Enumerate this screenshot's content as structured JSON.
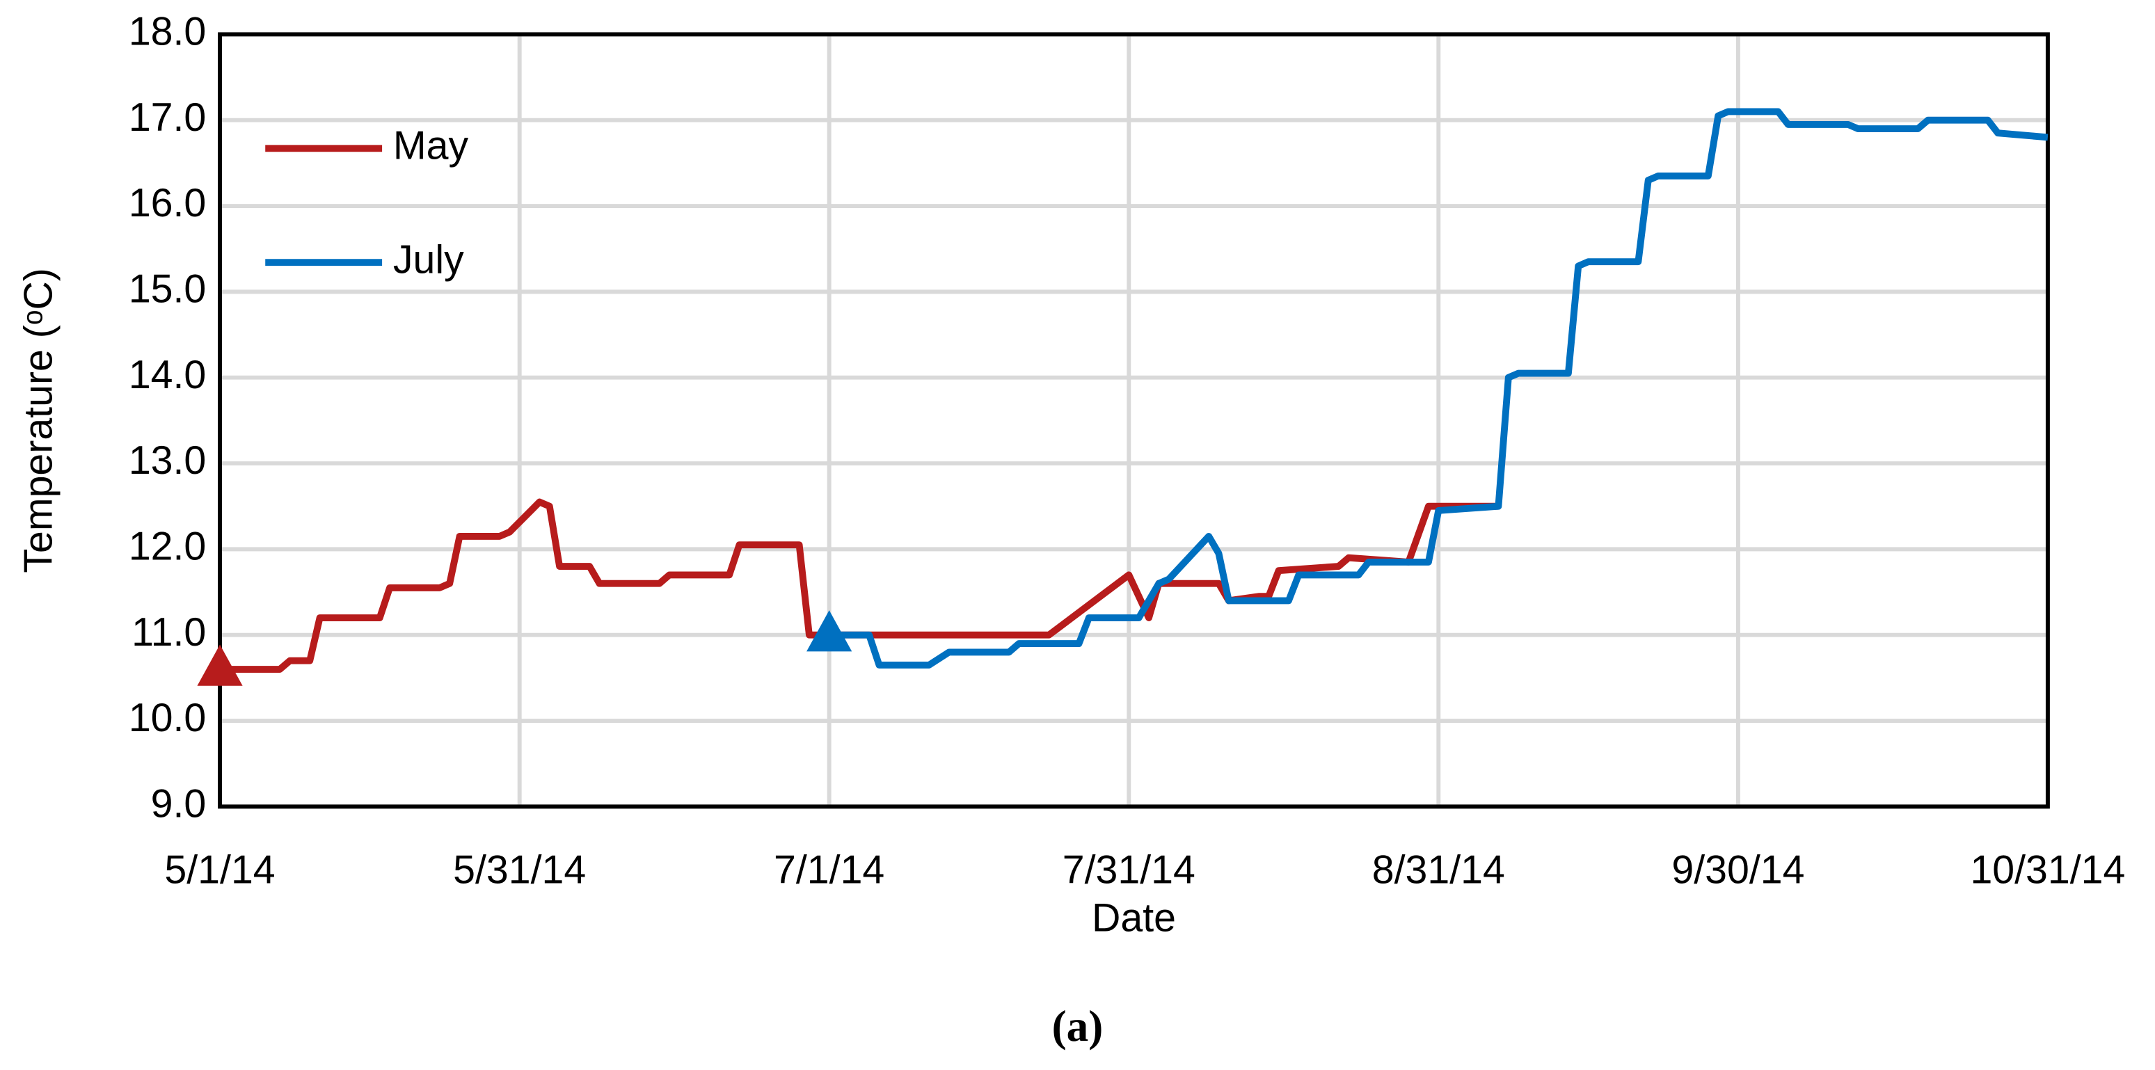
{
  "chart_data": {
    "type": "line",
    "x_label": "Date",
    "y_label": "Temperature (ᵒC)",
    "caption": "(a)",
    "xlim": [
      "5/1/14",
      "10/31/14"
    ],
    "xticks": [
      "5/1/14",
      "5/31/14",
      "7/1/14",
      "7/31/14",
      "8/31/14",
      "9/30/14",
      "10/31/14"
    ],
    "ylim": [
      9,
      18
    ],
    "yticks": [
      {
        "value": 9,
        "label": "9.0"
      },
      {
        "value": 10,
        "label": "10.0"
      },
      {
        "value": 11,
        "label": "11.0"
      },
      {
        "value": 12,
        "label": "12.0"
      },
      {
        "value": 13,
        "label": "13.0"
      },
      {
        "value": 14,
        "label": "14.0"
      },
      {
        "value": 15,
        "label": "15.0"
      },
      {
        "value": 16,
        "label": "16.0"
      },
      {
        "value": 17,
        "label": "17.0"
      },
      {
        "value": 18,
        "label": "18.0"
      }
    ],
    "grid": true,
    "legend": "upper-left",
    "series": [
      {
        "name": "May",
        "color": "#b71c1c",
        "start_marker": "triangle",
        "x": [
          "5/1/14",
          "5/7/14",
          "5/8/14",
          "5/10/14",
          "5/11/14",
          "5/17/14",
          "5/18/14",
          "5/23/14",
          "5/24/14",
          "5/25/14",
          "5/29/14",
          "5/30/14",
          "6/2/14",
          "6/3/14",
          "6/4/14",
          "6/7/14",
          "6/8/14",
          "6/14/14",
          "6/15/14",
          "6/21/14",
          "6/22/14",
          "6/28/14",
          "6/29/14",
          "7/1/14",
          "7/23/14",
          "7/31/14",
          "8/2/14",
          "8/3/14",
          "8/9/14",
          "8/10/14",
          "8/13/14",
          "8/14/14",
          "8/15/14",
          "8/21/14",
          "8/22/14",
          "8/28/14",
          "8/30/14",
          "9/6/14"
        ],
        "values": [
          10.6,
          10.6,
          10.7,
          10.7,
          11.2,
          11.2,
          11.55,
          11.55,
          11.6,
          12.15,
          12.15,
          12.2,
          12.55,
          12.5,
          11.8,
          11.8,
          11.6,
          11.6,
          11.7,
          11.7,
          12.05,
          12.05,
          11.0,
          11.0,
          11.0,
          11.7,
          11.2,
          11.6,
          11.6,
          11.4,
          11.45,
          11.45,
          11.75,
          11.8,
          11.9,
          11.85,
          12.5,
          12.5
        ]
      },
      {
        "name": "July",
        "color": "#0070c0",
        "start_marker": "triangle",
        "x": [
          "7/1/14",
          "7/5/14",
          "7/6/14",
          "7/11/14",
          "7/13/14",
          "7/19/14",
          "7/20/14",
          "7/26/14",
          "7/27/14",
          "8/1/14",
          "8/3/14",
          "8/4/14",
          "8/8/14",
          "8/9/14",
          "8/10/14",
          "8/16/14",
          "8/17/14",
          "8/23/14",
          "8/24/14",
          "8/30/14",
          "8/31/14",
          "9/6/14",
          "9/7/14",
          "9/8/14",
          "9/13/14",
          "9/14/14",
          "9/15/14",
          "9/20/14",
          "9/21/14",
          "9/22/14",
          "9/27/14",
          "9/28/14",
          "9/29/14",
          "10/4/14",
          "10/5/14",
          "10/11/14",
          "10/12/14",
          "10/18/14",
          "10/19/14",
          "10/25/14",
          "10/26/14",
          "10/31/14"
        ],
        "values": [
          11.0,
          11.0,
          10.65,
          10.65,
          10.8,
          10.8,
          10.9,
          10.9,
          11.2,
          11.2,
          11.6,
          11.65,
          12.15,
          11.95,
          11.4,
          11.4,
          11.7,
          11.7,
          11.85,
          11.85,
          12.45,
          12.5,
          14.0,
          14.05,
          14.05,
          15.3,
          15.35,
          15.35,
          16.3,
          16.35,
          16.35,
          17.05,
          17.1,
          17.1,
          16.95,
          16.95,
          16.9,
          16.9,
          17.0,
          17.0,
          16.85,
          16.8
        ]
      }
    ]
  }
}
